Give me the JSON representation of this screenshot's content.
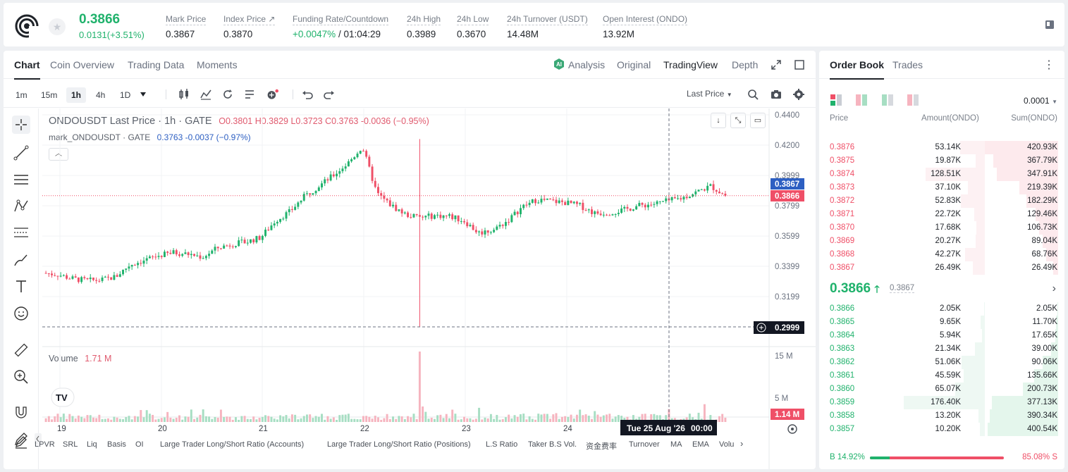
{
  "header": {
    "last_price": "0.3866",
    "change": "0.0131(+3.51%)",
    "stats": [
      {
        "label": "Mark Price",
        "value": "0.3867"
      },
      {
        "label": "Index Price ↗",
        "value": "0.3870"
      },
      {
        "label": "Funding Rate/Countdown",
        "value_green": "+0.0047%",
        "value": " / 01:04:29"
      },
      {
        "label": "24h High",
        "value": "0.3989"
      },
      {
        "label": "24h Low",
        "value": "0.3670"
      },
      {
        "label": "24h Turnover (USDT)",
        "value": "14.48M"
      },
      {
        "label": "Open Interest (ONDO)",
        "value": "13.92M"
      }
    ]
  },
  "chart_tabs": [
    "Chart",
    "Coin Overview",
    "Trading Data",
    "Moments"
  ],
  "view_tabs": {
    "analysis": "Analysis",
    "original": "Original",
    "tradingview": "TradingView",
    "depth": "Depth"
  },
  "timeframes": [
    "1m",
    "15m",
    "1h",
    "4h",
    "1D"
  ],
  "price_source": "Last Price",
  "legend": {
    "line1_title": "ONDOUSDT Last Price · 1h · GATE",
    "line1_ohlc": "O0.3801 H0.3829 L0.3723 C0.3763 -0.0036 (−0.95%)",
    "line2_title": "mark_ONDOUSDT · GATE",
    "line2_vals": "0.3763 -0.0037 (−0.97%)",
    "volume_label": "Volume",
    "volume_value": "1.71 M"
  },
  "axis": {
    "price_ticks": [
      "0.4400",
      "0.4200",
      "0.3999",
      "0.3799",
      "0.3599",
      "0.3399",
      "0.3199"
    ],
    "mark_tag": "0.3867",
    "last_tag": "0.3866",
    "crosshair_tag": "0.2999",
    "vol_ticks": [
      "15 M",
      "5 M"
    ],
    "vol_tag": "1.14 M",
    "day_ticks": [
      "19",
      "20",
      "21",
      "22",
      "23",
      "24"
    ],
    "crosshair_date": "Tue 25 Aug '26",
    "crosshair_time": "00:00"
  },
  "indicators": [
    "LPVR",
    "SRL",
    "Liq",
    "Basis",
    "OI",
    "Large Trader Long/Short Ratio (Accounts)",
    "Large Trader Long/Short Ratio (Positions)",
    "L.S Ratio",
    "Taker B.S Vol.",
    "资金费率",
    "Turnover",
    "MA",
    "EMA",
    "Volu"
  ],
  "chart_data": {
    "type": "candlestick",
    "title": "ONDOUSDT Last Price · 1h · GATE",
    "y_ticks": [
      0.44,
      0.42,
      0.3999,
      0.3799,
      0.3599,
      0.3399,
      0.3199
    ],
    "ylim": [
      0.2999,
      0.44
    ],
    "x_ticks": [
      "19",
      "20",
      "21",
      "22",
      "23",
      "24"
    ],
    "last": 0.3866,
    "mark": 0.3867,
    "trend_close": [
      0.3355,
      0.3345,
      0.3318,
      0.3305,
      0.3308,
      0.333,
      0.341,
      0.344,
      0.347,
      0.349,
      0.348,
      0.346,
      0.352,
      0.3545,
      0.356,
      0.359,
      0.37,
      0.376,
      0.386,
      0.393,
      0.4,
      0.408,
      0.419,
      0.388,
      0.38,
      0.374,
      0.372,
      0.3735,
      0.373,
      0.37,
      0.362,
      0.364,
      0.37,
      0.379,
      0.384,
      0.383,
      0.382,
      0.38,
      0.375,
      0.3755,
      0.377,
      0.38,
      0.381,
      0.383,
      0.385,
      0.389,
      0.393,
      0.3866
    ],
    "volume_peak_at": "22",
    "volume_peak": 15
  },
  "orderbook": {
    "tabs": [
      "Order Book",
      "Trades"
    ],
    "precision": "0.0001",
    "headers": {
      "price": "Price",
      "amount": "Amount(ONDO)",
      "sum": "Sum(ONDO)"
    },
    "asks": [
      {
        "price": "0.3876",
        "amount": "53.14K",
        "sum": "420.93K"
      },
      {
        "price": "0.3875",
        "amount": "19.87K",
        "sum": "367.79K"
      },
      {
        "price": "0.3874",
        "amount": "128.51K",
        "sum": "347.91K"
      },
      {
        "price": "0.3873",
        "amount": "37.10K",
        "sum": "219.39K"
      },
      {
        "price": "0.3872",
        "amount": "52.83K",
        "sum": "182.29K"
      },
      {
        "price": "0.3871",
        "amount": "22.72K",
        "sum": "129.46K"
      },
      {
        "price": "0.3870",
        "amount": "17.68K",
        "sum": "106.73K"
      },
      {
        "price": "0.3869",
        "amount": "20.27K",
        "sum": "89.04K"
      },
      {
        "price": "0.3868",
        "amount": "42.27K",
        "sum": "68.76K"
      },
      {
        "price": "0.3867",
        "amount": "26.49K",
        "sum": "26.49K"
      }
    ],
    "mid_price": "0.3866",
    "mid_mark": "0.3867",
    "bids": [
      {
        "price": "0.3866",
        "amount": "2.05K",
        "sum": "2.05K"
      },
      {
        "price": "0.3865",
        "amount": "9.65K",
        "sum": "11.70K"
      },
      {
        "price": "0.3864",
        "amount": "5.94K",
        "sum": "17.65K"
      },
      {
        "price": "0.3863",
        "amount": "21.34K",
        "sum": "39.00K"
      },
      {
        "price": "0.3862",
        "amount": "51.06K",
        "sum": "90.06K"
      },
      {
        "price": "0.3861",
        "amount": "45.59K",
        "sum": "135.66K"
      },
      {
        "price": "0.3860",
        "amount": "65.07K",
        "sum": "200.73K"
      },
      {
        "price": "0.3859",
        "amount": "176.40K",
        "sum": "377.13K"
      },
      {
        "price": "0.3858",
        "amount": "13.20K",
        "sum": "390.34K"
      },
      {
        "price": "0.3857",
        "amount": "10.20K",
        "sum": "400.54K"
      }
    ],
    "buy_ratio": "B 14.92%",
    "sell_ratio": "85.08% S",
    "buy_fraction": 0.1492
  },
  "colors": {
    "up": "#20b26c",
    "down": "#ef4f67",
    "accent": "#2d5fc2"
  }
}
